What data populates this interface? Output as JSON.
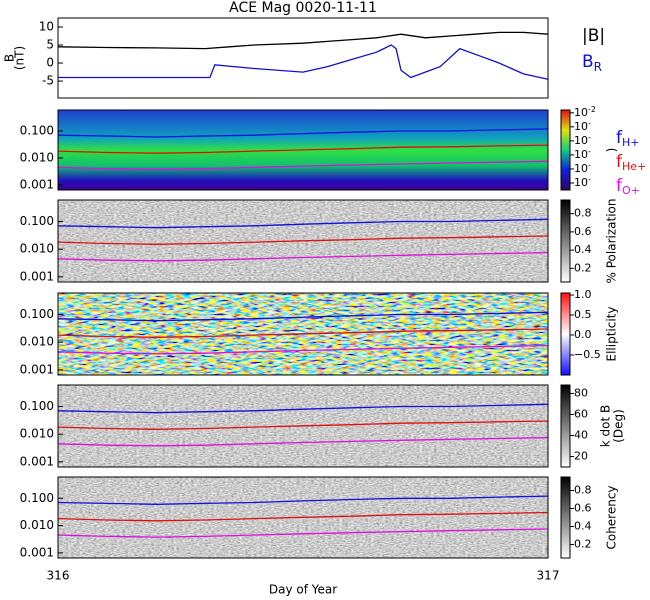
{
  "title": "ACE Mag 0020-11-11",
  "x_label": "Day of Year",
  "xlim": [
    316,
    317
  ],
  "xticks": [
    316,
    317
  ],
  "frequency_lines": [
    {
      "name": "f",
      "subscript": "H+",
      "color": "#1010e0",
      "x": [
        316,
        316.1,
        316.2,
        316.3,
        316.4,
        316.5,
        316.6,
        316.7,
        316.8,
        316.9,
        317
      ],
      "values": [
        0.07,
        0.065,
        0.06,
        0.065,
        0.07,
        0.08,
        0.09,
        0.1,
        0.1,
        0.11,
        0.12
      ]
    },
    {
      "name": "f",
      "subscript": "He+",
      "color": "#e01010",
      "x": [
        316,
        316.1,
        316.2,
        316.3,
        316.4,
        316.5,
        316.6,
        316.7,
        316.8,
        316.9,
        317
      ],
      "values": [
        0.018,
        0.016,
        0.015,
        0.016,
        0.018,
        0.02,
        0.022,
        0.025,
        0.026,
        0.028,
        0.03
      ]
    },
    {
      "name": "f",
      "subscript": "O+",
      "color": "#e010e0",
      "x": [
        316,
        316.1,
        316.2,
        316.3,
        316.4,
        316.5,
        316.6,
        316.7,
        316.8,
        316.9,
        317
      ],
      "values": [
        0.0045,
        0.004,
        0.0038,
        0.004,
        0.0045,
        0.005,
        0.0055,
        0.006,
        0.0065,
        0.007,
        0.0075
      ]
    }
  ],
  "chart_data": [
    {
      "type": "line",
      "y_label": [
        "B",
        "(nT)"
      ],
      "ylim": [
        -9.7,
        12.5
      ],
      "yticks": [
        -5,
        0,
        5,
        10
      ],
      "series": [
        {
          "name": "|B|",
          "color": "#000000",
          "x": [
            316,
            316.1,
            316.2,
            316.3,
            316.35,
            316.4,
            316.5,
            316.55,
            316.6,
            316.65,
            316.7,
            316.75,
            316.8,
            316.85,
            316.9,
            316.95,
            317
          ],
          "values": [
            4.5,
            4.3,
            4.2,
            4,
            4.5,
            5,
            5.5,
            6,
            6.5,
            7,
            8,
            7,
            7.5,
            8,
            8.5,
            8.5,
            8
          ]
        },
        {
          "name": "B",
          "subscript": "R",
          "color": "#1010d0",
          "x": [
            316,
            316.1,
            316.2,
            316.31,
            316.32,
            316.4,
            316.5,
            316.55,
            316.6,
            316.65,
            316.68,
            316.69,
            316.7,
            316.72,
            316.78,
            316.82,
            316.86,
            316.9,
            316.95,
            317
          ],
          "values": [
            -4,
            -4,
            -4,
            -4,
            -0.5,
            -1.5,
            -2.5,
            -1,
            1,
            3,
            5,
            4,
            -2,
            -4,
            -1,
            4,
            2,
            0,
            -3,
            -4.5
          ]
        }
      ]
    },
    {
      "type": "spectrogram",
      "style": "power",
      "ylim": [
        0.00065,
        0.6
      ],
      "yticks": [
        {
          "value": 0.001,
          "label": "0.001"
        },
        {
          "value": 0.01,
          "label": "0.010"
        },
        {
          "value": 0.1,
          "label": "0.100"
        }
      ],
      "colorbar": {
        "title": ")",
        "lim": [
          -7.5,
          -1.8
        ],
        "ticks": [
          {
            "value": -2,
            "label": "10",
            "sup": "-2"
          },
          {
            "value": -3,
            "label": "10",
            "sup": "-"
          },
          {
            "value": -4,
            "label": "10",
            "sup": "-"
          },
          {
            "value": -5,
            "label": "10",
            "sup": "-"
          },
          {
            "value": -6,
            "label": "10",
            "sup": "-"
          },
          {
            "value": -7,
            "label": "10",
            "sup": "-"
          }
        ]
      }
    },
    {
      "type": "spectrogram",
      "style": "gray",
      "ylim": [
        0.00065,
        0.6
      ],
      "yticks": [
        {
          "value": 0.001,
          "label": "0.001"
        },
        {
          "value": 0.01,
          "label": "0.010"
        },
        {
          "value": 0.1,
          "label": "0.100"
        }
      ],
      "colorbar": {
        "title": "% Polarization",
        "lim": [
          0.05,
          0.95
        ],
        "ticks": [
          0.2,
          0.4,
          0.6,
          0.8
        ]
      }
    },
    {
      "type": "spectrogram",
      "style": "redblue",
      "ylim": [
        0.00065,
        0.6
      ],
      "yticks": [
        {
          "value": 0.001,
          "label": "0.001"
        },
        {
          "value": 0.01,
          "label": "0.010"
        },
        {
          "value": 0.1,
          "label": "0.100"
        }
      ],
      "colorbar": {
        "title": "Ellipticity",
        "lim": [
          -1,
          1.05
        ],
        "ticks": [
          {
            "value": -0.5,
            "label": "−0.5"
          },
          {
            "value": 0,
            "label": "0.0"
          },
          0.5,
          {
            "value": 1,
            "label": "1.0"
          }
        ]
      }
    },
    {
      "type": "spectrogram",
      "style": "gray",
      "ylim": [
        0.00065,
        0.6
      ],
      "yticks": [
        {
          "value": 0.001,
          "label": "0.001"
        },
        {
          "value": 0.01,
          "label": "0.010"
        },
        {
          "value": 0.1,
          "label": "0.100"
        }
      ],
      "colorbar": {
        "title": "k dot B",
        "title2": "(Deg)",
        "lim": [
          10,
          88
        ],
        "ticks": [
          20,
          40,
          60,
          80
        ]
      }
    },
    {
      "type": "spectrogram",
      "style": "gray",
      "ylim": [
        0.00065,
        0.6
      ],
      "yticks": [
        {
          "value": 0.001,
          "label": "0.001"
        },
        {
          "value": 0.01,
          "label": "0.010"
        },
        {
          "value": 0.1,
          "label": "0.100"
        }
      ],
      "colorbar": {
        "title": "Coherency",
        "lim": [
          0.05,
          0.95
        ],
        "ticks": [
          0.2,
          0.4,
          0.6,
          0.8
        ]
      }
    }
  ]
}
